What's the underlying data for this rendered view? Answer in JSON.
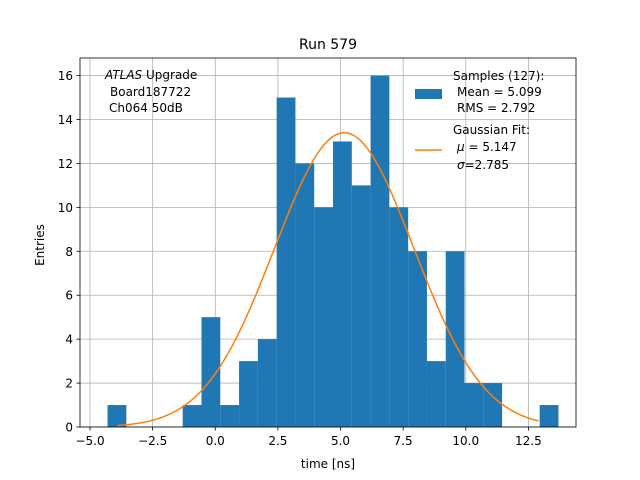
{
  "chart_data": {
    "type": "bar",
    "title": "Run 579",
    "xlabel": "time [ns]",
    "ylabel": "Entries",
    "xlim": [
      -5.4,
      14.4
    ],
    "ylim": [
      0,
      16.8
    ],
    "grid": true,
    "bar_color": "#1f77b4",
    "fit_color": "#ff7f0e",
    "bin_width": 0.75,
    "bins": [
      {
        "left": -4.3,
        "count": 1
      },
      {
        "left": -1.3,
        "count": 1
      },
      {
        "left": -0.55,
        "count": 5
      },
      {
        "left": 0.2,
        "count": 1
      },
      {
        "left": 0.95,
        "count": 3
      },
      {
        "left": 1.7,
        "count": 4
      },
      {
        "left": 2.45,
        "count": 15
      },
      {
        "left": 3.2,
        "count": 12
      },
      {
        "left": 3.95,
        "count": 10
      },
      {
        "left": 4.7,
        "count": 13
      },
      {
        "left": 5.45,
        "count": 11
      },
      {
        "left": 6.2,
        "count": 16
      },
      {
        "left": 6.95,
        "count": 10
      },
      {
        "left": 7.7,
        "count": 8
      },
      {
        "left": 8.45,
        "count": 3
      },
      {
        "left": 9.2,
        "count": 8
      },
      {
        "left": 9.95,
        "count": 2
      },
      {
        "left": 10.7,
        "count": 2
      },
      {
        "left": 12.95,
        "count": 1
      }
    ],
    "fit": {
      "type": "gaussian",
      "amplitude": 13.4,
      "mu": 5.147,
      "sigma": 2.785,
      "x_range": [
        -3.9,
        12.9
      ]
    },
    "x_ticks": [
      -5.0,
      -2.5,
      0.0,
      2.5,
      5.0,
      7.5,
      10.0,
      12.5
    ],
    "x_tick_labels": [
      "−5.0",
      "−2.5",
      "0.0",
      "2.5",
      "5.0",
      "7.5",
      "10.0",
      "12.5"
    ],
    "y_ticks": [
      0,
      2,
      4,
      6,
      8,
      10,
      12,
      14,
      16
    ],
    "y_tick_labels": [
      "0",
      "2",
      "4",
      "6",
      "8",
      "10",
      "12",
      "14",
      "16"
    ],
    "annotation": {
      "atlas": "ATLAS",
      "upgrade": " Upgrade",
      "board": "Board187722",
      "channel": "Ch064 50dB"
    },
    "legend": {
      "position": "top-right",
      "samples_title": "Samples (127):",
      "samples_mean": "Mean = 5.099",
      "samples_rms": "RMS = 2.792",
      "fit_title": "Gaussian Fit:",
      "fit_mu_symbol": "μ",
      "fit_mu_value": " = 5.147",
      "fit_sigma_symbol": "σ",
      "fit_sigma_value": "=2.785"
    }
  }
}
